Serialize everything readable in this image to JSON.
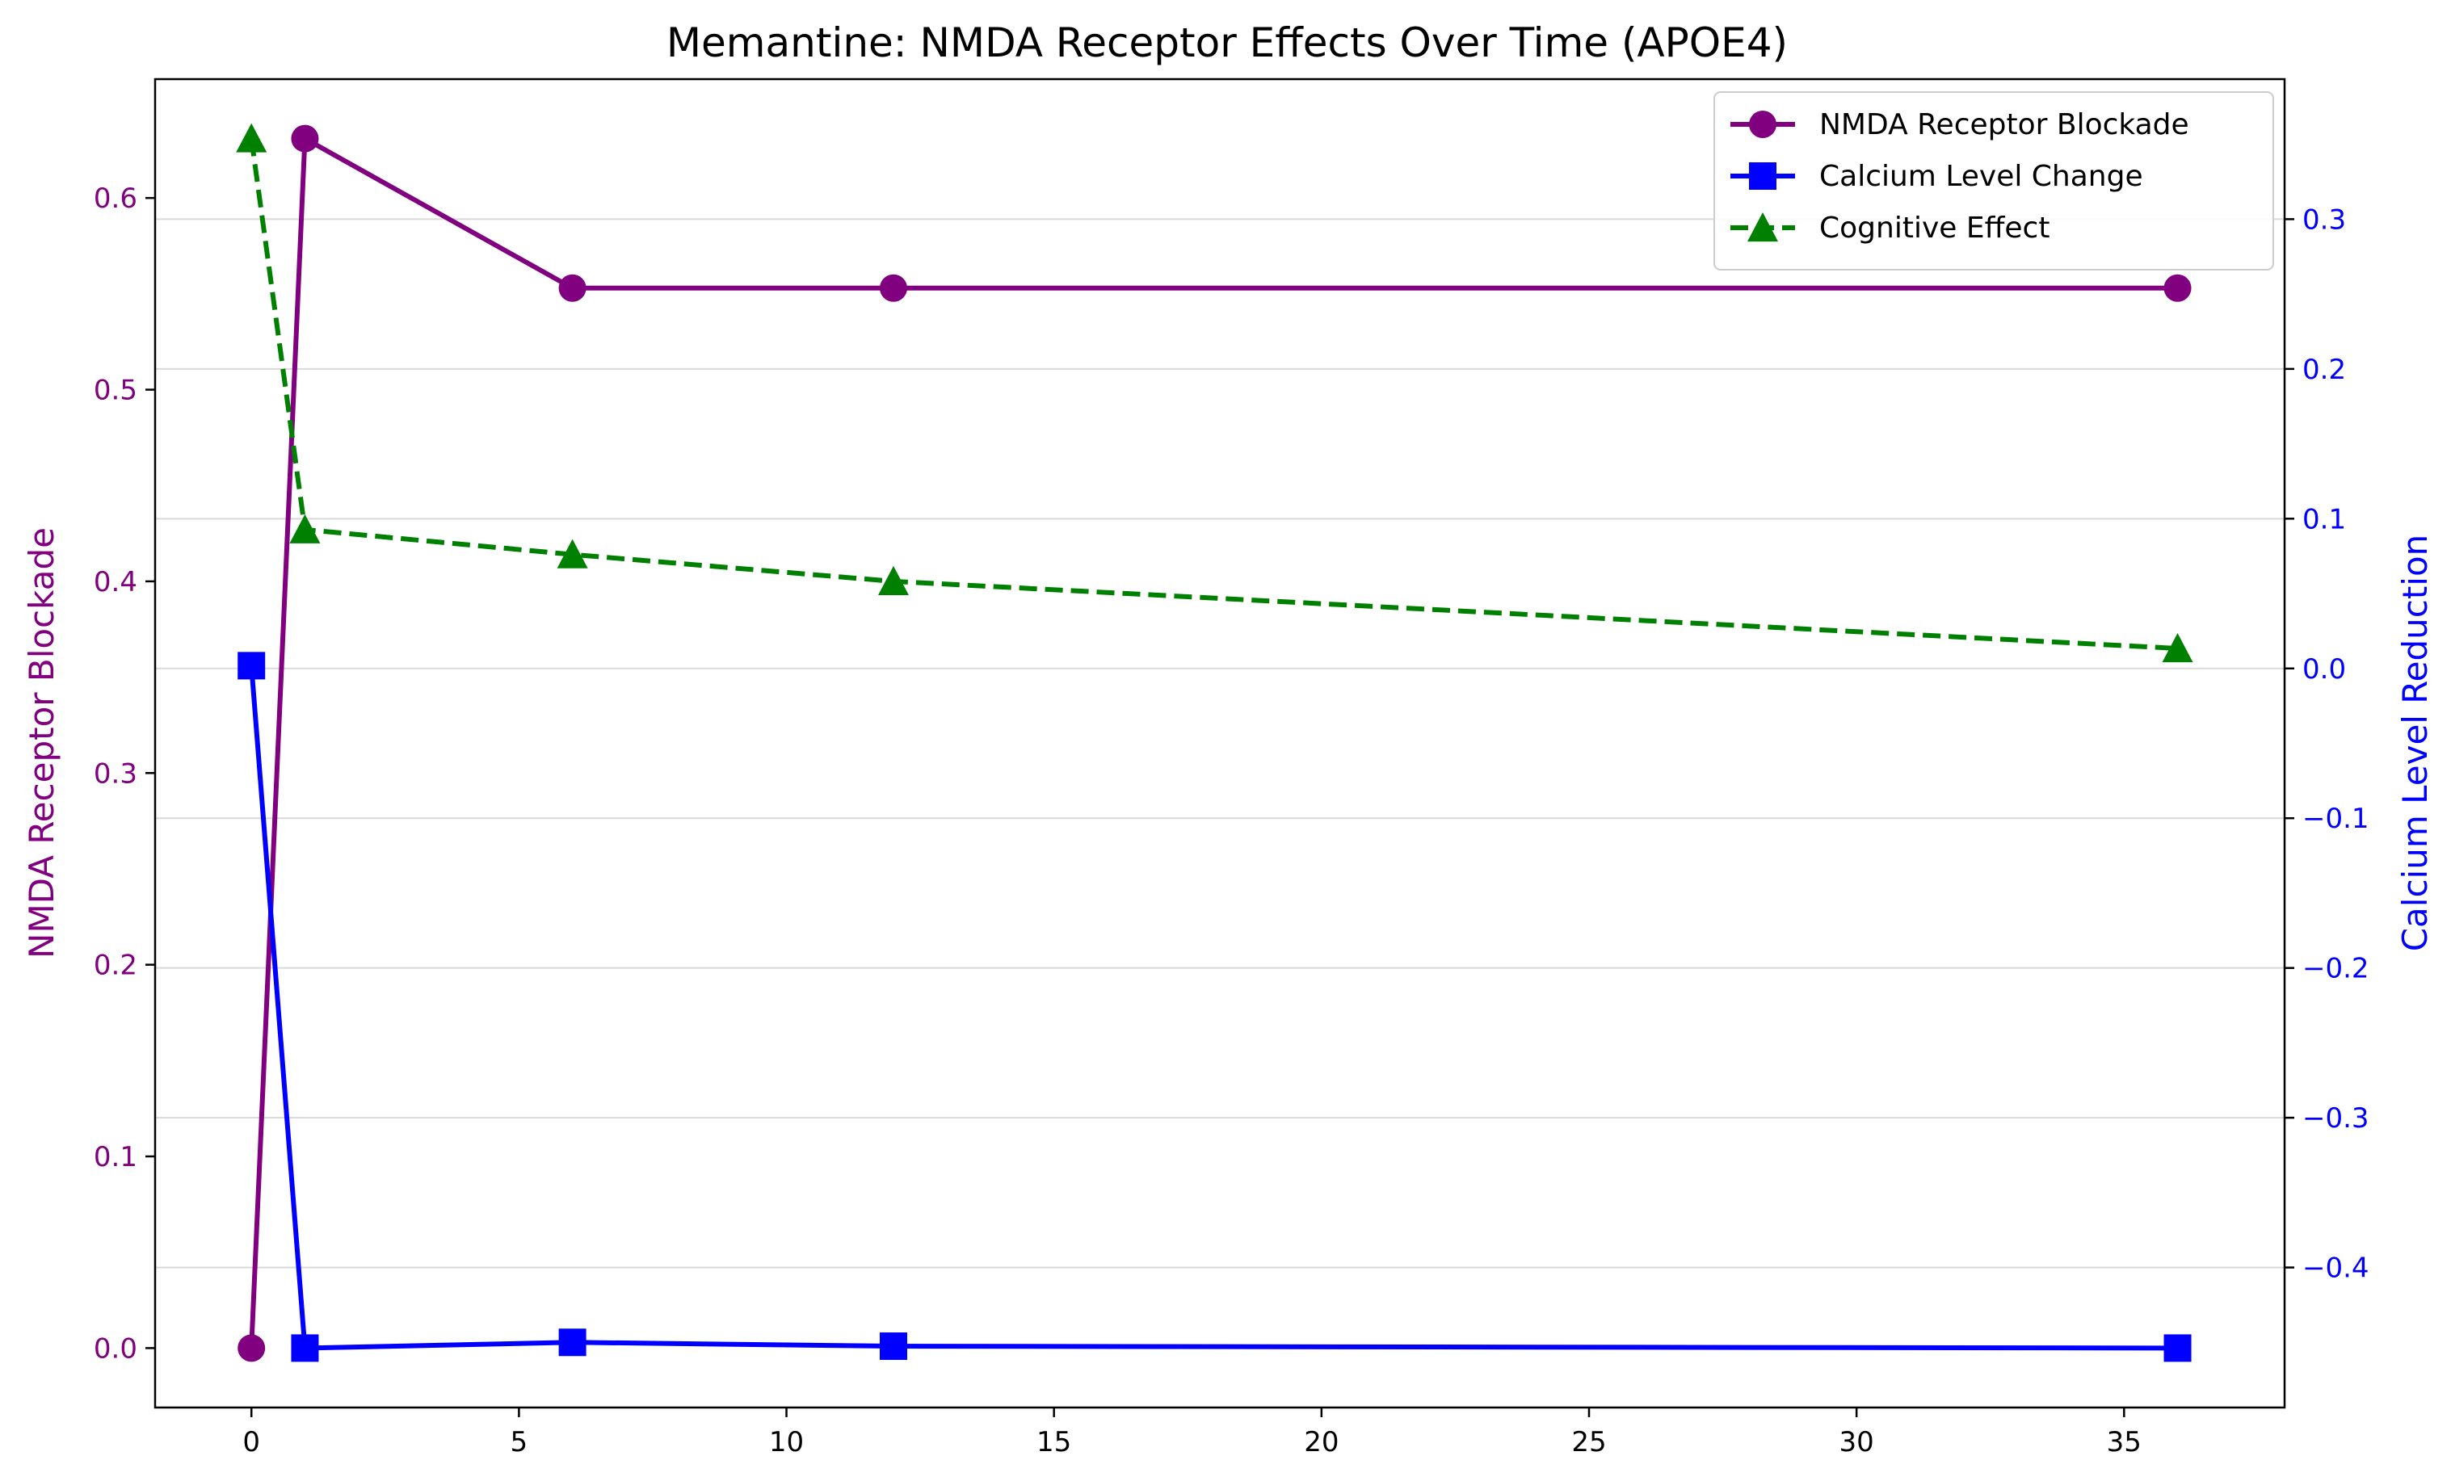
{
  "chart_data": {
    "type": "line",
    "title": "Memantine: NMDA Receptor Effects Over Time (APOE4)",
    "xlabel": "",
    "ylabel_left": "NMDA Receptor Blockade",
    "ylabel_right": "Calcium Level Reduction",
    "xlim": [
      -1.8,
      38
    ],
    "ylim_left": [
      -0.031,
      0.662
    ],
    "ylim_right": [
      -0.4935,
      0.3935
    ],
    "xticks": [
      0,
      5,
      10,
      15,
      20,
      25,
      30,
      35
    ],
    "xtick_labels": [
      "0",
      "5",
      "10",
      "15",
      "20",
      "25",
      "30",
      "35"
    ],
    "yticks_left": [
      0.0,
      0.1,
      0.2,
      0.3,
      0.4,
      0.5,
      0.6
    ],
    "ytick_labels_left": [
      "0.0",
      "0.1",
      "0.2",
      "0.3",
      "0.4",
      "0.5",
      "0.6"
    ],
    "yticks_right": [
      -0.4,
      -0.3,
      -0.2,
      -0.1,
      0.0,
      0.1,
      0.2,
      0.3
    ],
    "ytick_labels_right": [
      "−0.4",
      "−0.3",
      "−0.2",
      "−0.1",
      "0.0",
      "0.1",
      "0.2",
      "0.3"
    ],
    "grid": "horizontal",
    "legend_position": "top-right",
    "series": [
      {
        "name": "NMDA Receptor Blockade",
        "axis": "left",
        "color": "#800080",
        "marker": "circle",
        "dash": "solid",
        "x": [
          0,
          1,
          6,
          12,
          36
        ],
        "y": [
          0.0,
          0.631,
          0.553,
          0.553,
          0.553
        ]
      },
      {
        "name": "Calcium Level Change",
        "axis": "left",
        "color": "#0000ff",
        "marker": "square",
        "dash": "solid",
        "x": [
          0,
          1,
          6,
          12,
          36
        ],
        "y": [
          0.356,
          0.0,
          0.003,
          0.001,
          0.0
        ]
      },
      {
        "name": "Cognitive Effect",
        "axis": "left",
        "color": "#008000",
        "marker": "triangle",
        "dash": "dashed",
        "x": [
          0,
          1,
          6,
          12,
          36
        ],
        "y": [
          0.631,
          0.427,
          0.414,
          0.4,
          0.365
        ]
      }
    ]
  }
}
